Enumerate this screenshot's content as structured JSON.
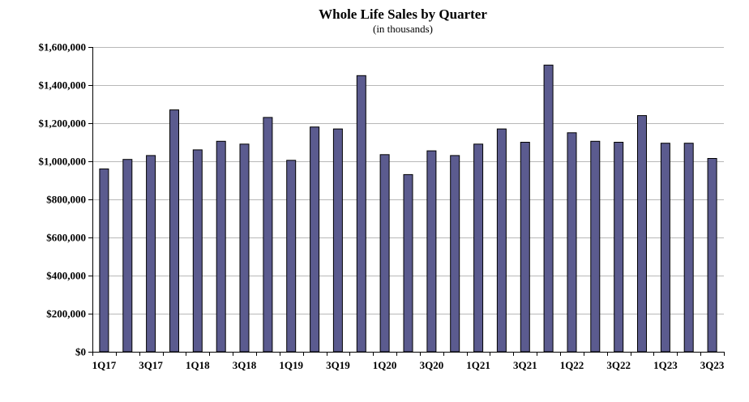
{
  "chart_data": {
    "type": "bar",
    "title": "Whole Life Sales by Quarter",
    "subtitle": "(in thousands)",
    "xlabel": "",
    "ylabel": "",
    "ylim": [
      0,
      1600000
    ],
    "y_ticks": [
      0,
      200000,
      400000,
      600000,
      800000,
      1000000,
      1200000,
      1400000,
      1600000
    ],
    "y_tick_labels": [
      "$0",
      "$200,000",
      "$400,000",
      "$600,000",
      "$800,000",
      "$1,000,000",
      "$1,200,000",
      "$1,400,000",
      "$1,600,000"
    ],
    "categories": [
      "1Q17",
      "2Q17",
      "3Q17",
      "4Q17",
      "1Q18",
      "2Q18",
      "3Q18",
      "4Q18",
      "1Q19",
      "2Q19",
      "3Q19",
      "4Q19",
      "1Q20",
      "2Q20",
      "3Q20",
      "4Q20",
      "1Q21",
      "2Q21",
      "3Q21",
      "4Q21",
      "1Q22",
      "2Q22",
      "3Q22",
      "4Q22",
      "1Q23",
      "2Q23",
      "3Q23"
    ],
    "x_tick_labels_shown": [
      "1Q17",
      "3Q17",
      "1Q18",
      "3Q18",
      "1Q19",
      "3Q19",
      "1Q20",
      "3Q20",
      "1Q21",
      "3Q21",
      "1Q22",
      "3Q22",
      "1Q23",
      "3Q23"
    ],
    "values": [
      960000,
      1010000,
      1030000,
      1270000,
      1060000,
      1105000,
      1090000,
      1230000,
      1005000,
      1180000,
      1170000,
      1450000,
      1035000,
      930000,
      1055000,
      1030000,
      1090000,
      1170000,
      1100000,
      1505000,
      1150000,
      1105000,
      1100000,
      1240000,
      1095000,
      1095000,
      1015000
    ],
    "grid": true,
    "legend": "none",
    "bar_color": "#5b5b8f"
  }
}
